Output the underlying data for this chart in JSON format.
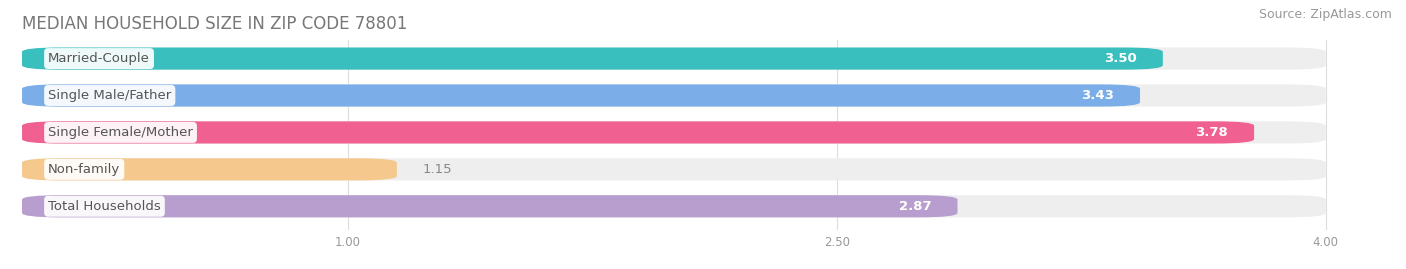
{
  "title": "MEDIAN HOUSEHOLD SIZE IN ZIP CODE 78801",
  "source": "Source: ZipAtlas.com",
  "categories": [
    "Married-Couple",
    "Single Male/Father",
    "Single Female/Mother",
    "Non-family",
    "Total Households"
  ],
  "values": [
    3.5,
    3.43,
    3.78,
    1.15,
    2.87
  ],
  "bar_colors": [
    "#3abfbf",
    "#7baee8",
    "#f06090",
    "#f5c98e",
    "#b89ece"
  ],
  "xlim_min": 0.0,
  "xlim_max": 4.2,
  "data_min": 0.0,
  "data_max": 4.0,
  "xticks": [
    1.0,
    2.5,
    4.0
  ],
  "xtick_labels": [
    "1.00",
    "2.50",
    "4.00"
  ],
  "title_fontsize": 12,
  "source_fontsize": 9,
  "label_fontsize": 9.5,
  "value_fontsize": 9.5,
  "background_color": "#ffffff",
  "bar_background_color": "#eeeeee",
  "label_text_color": "#555555",
  "nonfamily_value_color": "#888888"
}
